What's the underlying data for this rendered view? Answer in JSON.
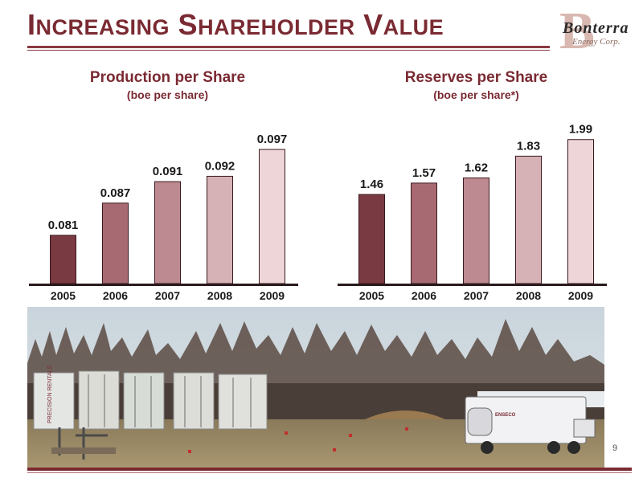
{
  "slide": {
    "title_parts": [
      {
        "cap": "I",
        "rest": "NCREASING"
      },
      {
        "cap": "S",
        "rest": "HAREHOLDER"
      },
      {
        "cap": "V",
        "rest": "ALUE"
      }
    ],
    "page_number": "9"
  },
  "logo": {
    "name": "Bonterra",
    "subtitle": "Energy Corp."
  },
  "colors": {
    "accent": "#7a2a32",
    "bars": [
      "#7a3a42",
      "#a86a72",
      "#bc8a90",
      "#d6b2b6",
      "#eed6d8"
    ]
  },
  "chart_data": [
    {
      "type": "bar",
      "title": "Production per Share",
      "subtitle": "(boe per share)",
      "categories": [
        "2005",
        "2006",
        "2007",
        "2008",
        "2009"
      ],
      "values": [
        0.081,
        0.087,
        0.091,
        0.092,
        0.097
      ],
      "value_labels": [
        "0.081",
        "0.087",
        "0.091",
        "0.092",
        "0.097"
      ],
      "ylim": [
        0.072,
        0.1
      ],
      "grid": false,
      "legend": "none"
    },
    {
      "type": "bar",
      "title": "Reserves per Share",
      "subtitle": "(boe per share*)",
      "categories": [
        "2005",
        "2006",
        "2007",
        "2008",
        "2009"
      ],
      "values": [
        1.46,
        1.57,
        1.62,
        1.83,
        1.99
      ],
      "value_labels": [
        "1.46",
        "1.57",
        "1.62",
        "1.83",
        "1.99"
      ],
      "ylim": [
        0.6,
        2.05
      ],
      "grid": false,
      "legend": "none"
    }
  ],
  "photo": {
    "tank_label": "PRECISION RENTALS",
    "truck_label": "ENSECO"
  }
}
